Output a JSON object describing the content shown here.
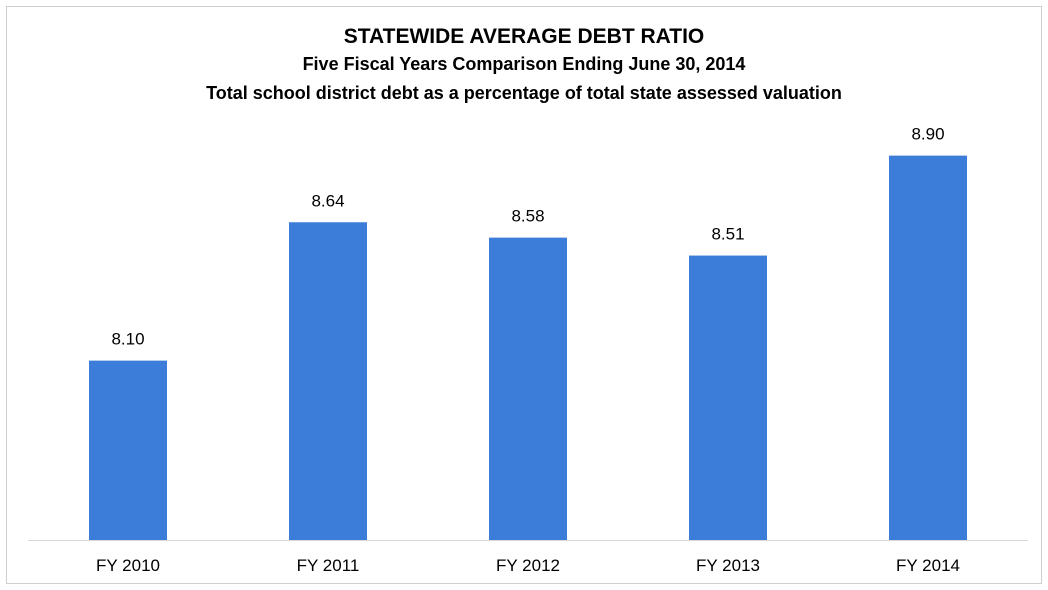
{
  "chart_data": {
    "type": "bar",
    "title": "STATEWIDE AVERAGE DEBT RATIO",
    "subtitle": "Five Fiscal Years Comparison Ending June 30, 2014",
    "subtitle2": "Total school district debt as a percentage of total state assessed valuation",
    "categories": [
      "FY 2010",
      "FY 2011",
      "FY 2012",
      "FY 2013",
      "FY 2014"
    ],
    "values": [
      8.1,
      8.64,
      8.58,
      8.51,
      8.9
    ],
    "value_labels": [
      "8.10",
      "8.64",
      "8.58",
      "8.51",
      "8.90"
    ],
    "xlabel": "",
    "ylabel": "",
    "ylim": [
      7.4,
      9.0
    ],
    "grid": false,
    "legend": "none",
    "bar_color": "#3b7dd8"
  }
}
